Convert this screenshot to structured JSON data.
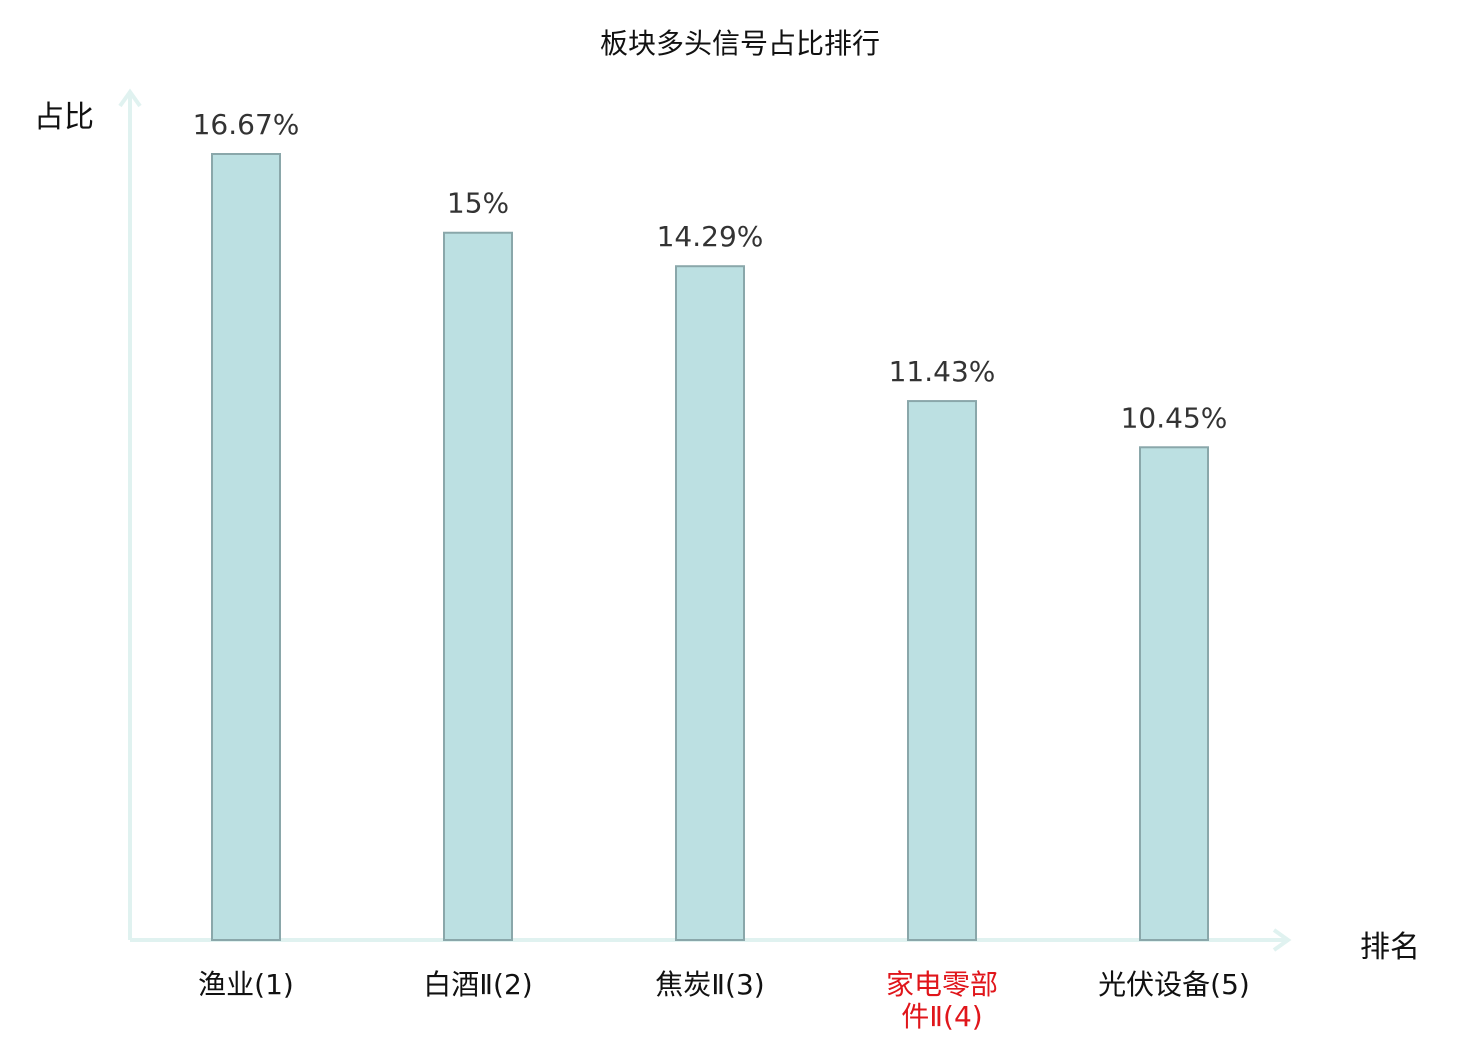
{
  "chart_data": {
    "type": "bar",
    "title": "板块多头信号占比排行",
    "ylabel": "占比",
    "xlabel": "排名",
    "categories": [
      [
        "渔业(1)"
      ],
      [
        "白酒Ⅱ(2)"
      ],
      [
        "焦炭Ⅱ(3)"
      ],
      [
        "家电零部",
        "件Ⅱ(4)"
      ],
      [
        "光伏设备(5)"
      ]
    ],
    "value_labels": [
      "16.67%",
      "15%",
      "14.29%",
      "11.43%",
      "10.45%"
    ],
    "values": [
      16.67,
      15,
      14.29,
      11.43,
      10.45
    ],
    "highlight_index": 3,
    "colors": {
      "bar_fill": "#bce0e2",
      "bar_stroke": "#8aa7aa",
      "axis": "#e0f2f0",
      "highlight_label": "#e0161b",
      "label": "#111111",
      "value_label": "#333333"
    },
    "grid": false,
    "ylim": [
      0,
      16.67
    ]
  }
}
